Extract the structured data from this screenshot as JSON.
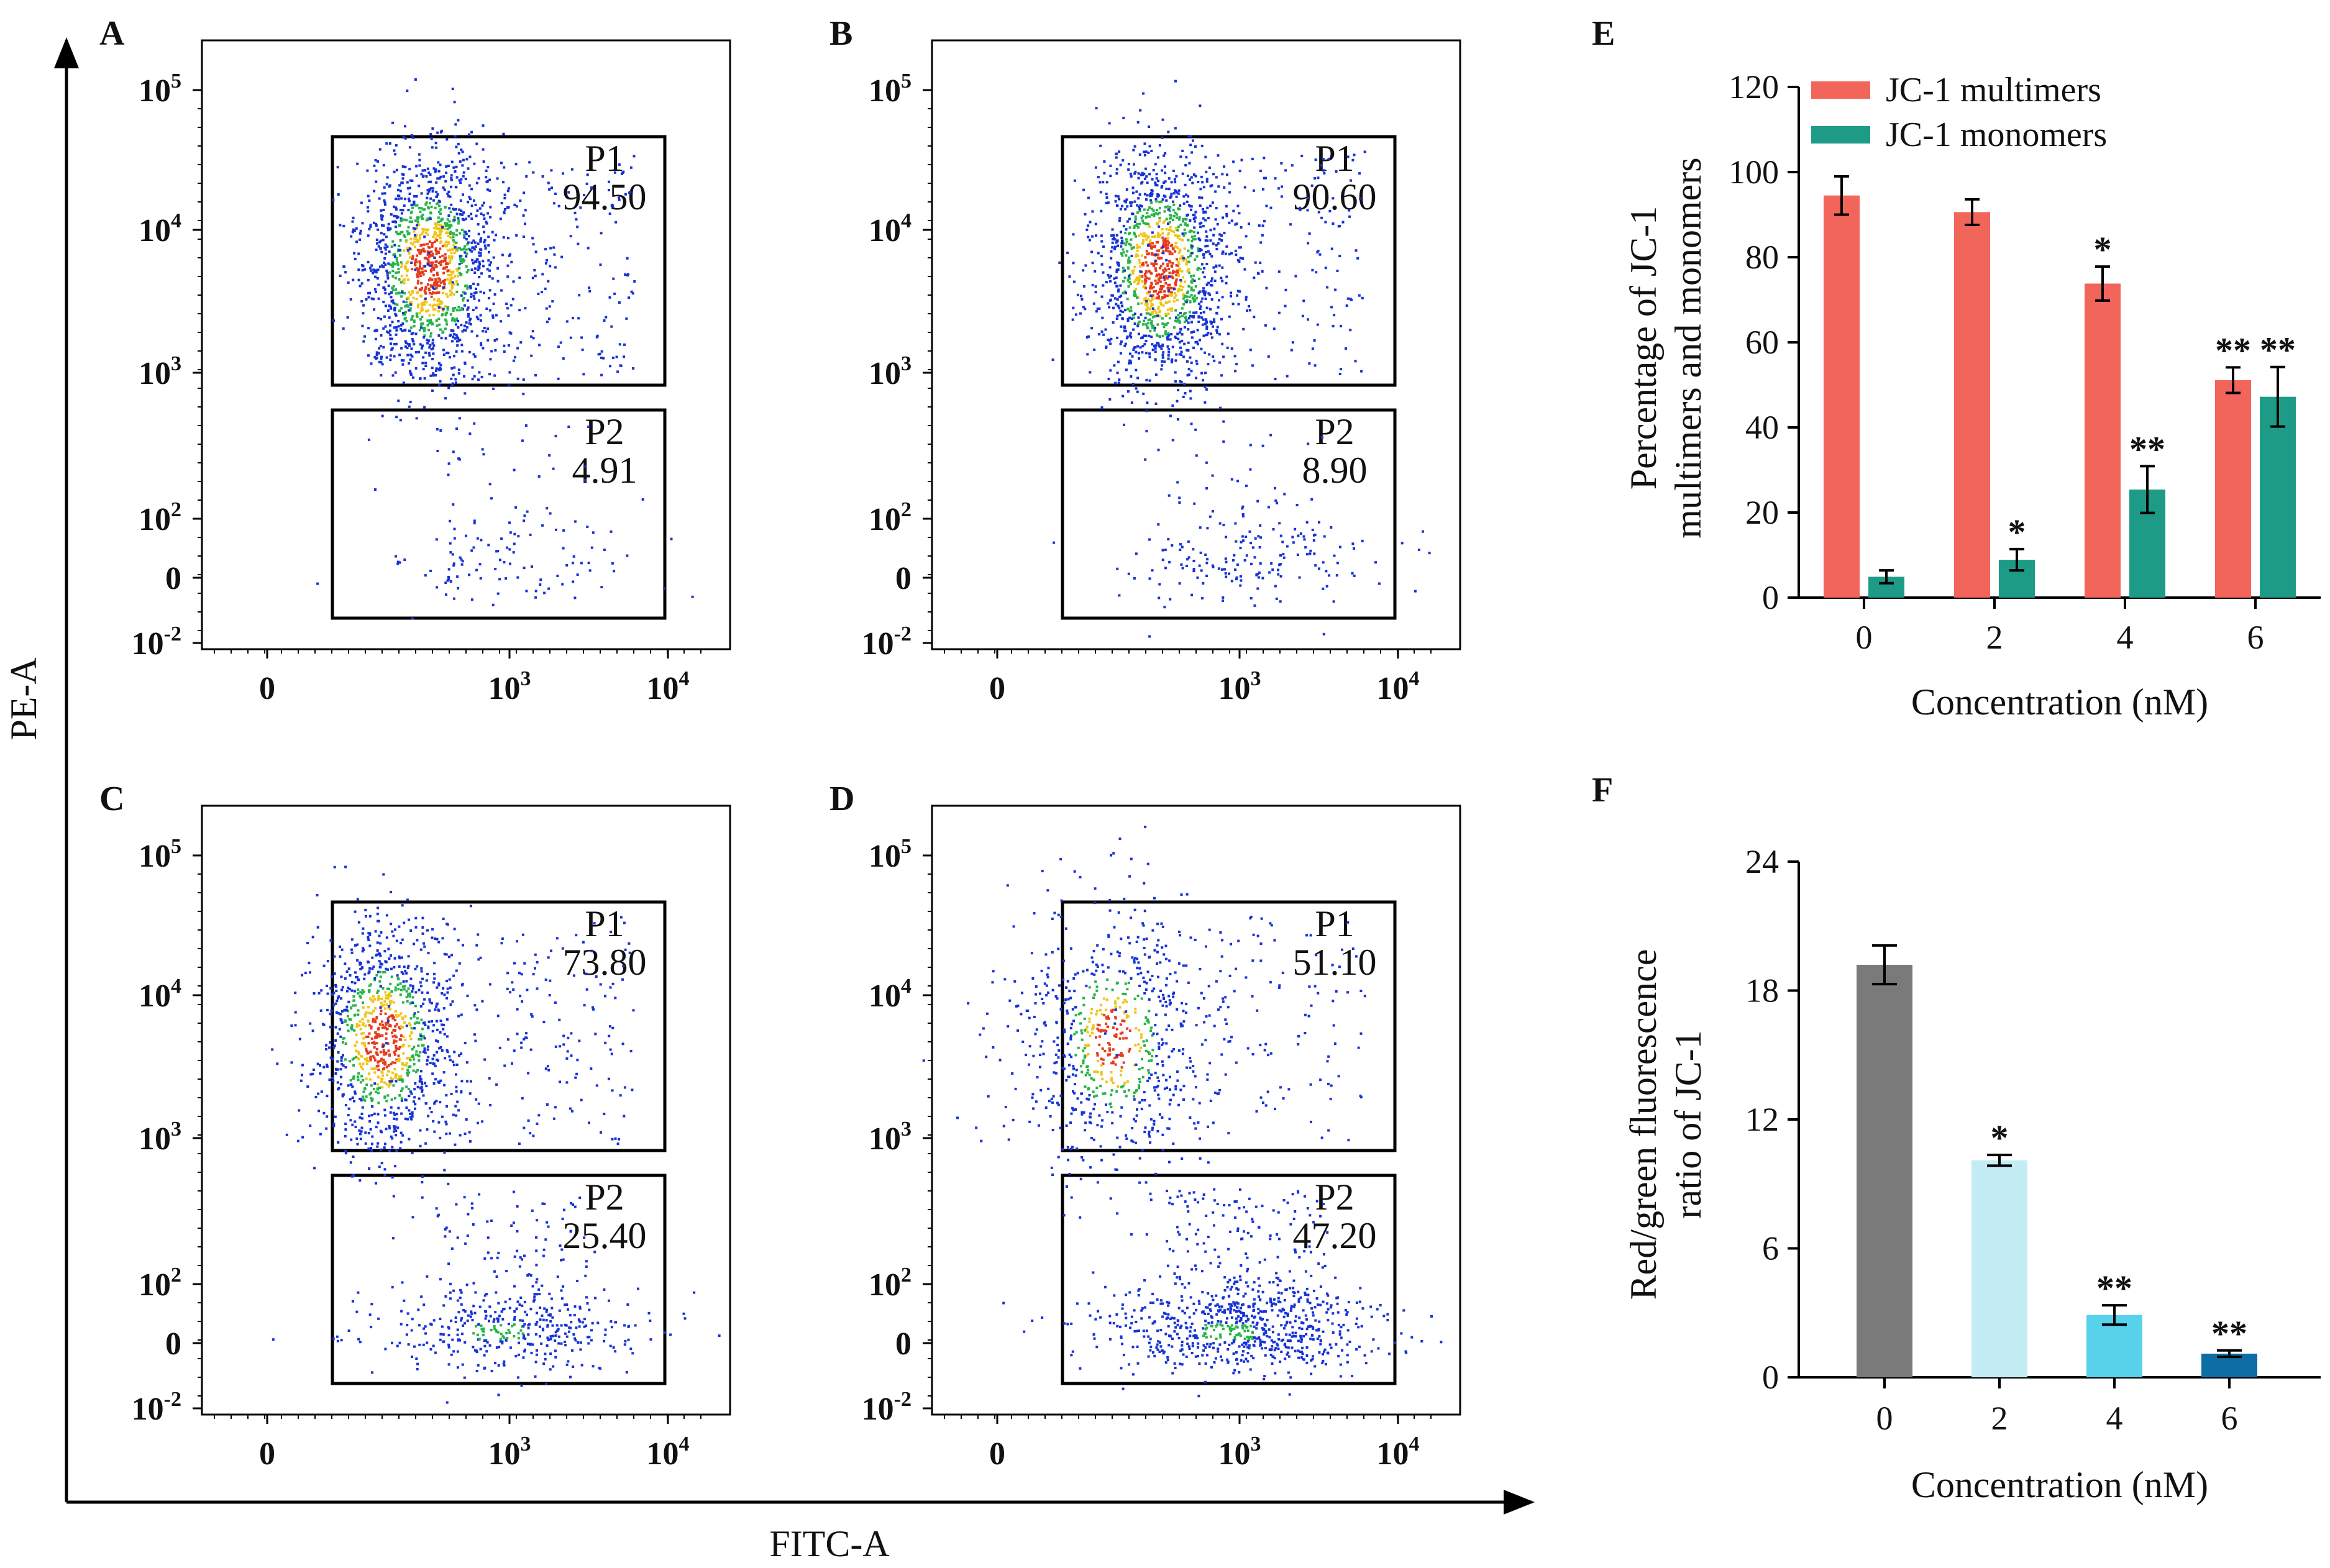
{
  "figure": {
    "global_axes": {
      "y_label": "PE-A",
      "x_label": "FITC-A"
    },
    "flow_panels": [
      {
        "letter": "A",
        "gates": [
          {
            "name": "P1",
            "value": "94.50"
          },
          {
            "name": "P2",
            "value": "4.91"
          }
        ],
        "seed": 11
      },
      {
        "letter": "B",
        "gates": [
          {
            "name": "P1",
            "value": "90.60"
          },
          {
            "name": "P2",
            "value": "8.90"
          }
        ],
        "seed": 23
      },
      {
        "letter": "C",
        "gates": [
          {
            "name": "P1",
            "value": "73.80"
          },
          {
            "name": "P2",
            "value": "25.40"
          }
        ],
        "seed": 37
      },
      {
        "letter": "D",
        "gates": [
          {
            "name": "P1",
            "value": "51.10"
          },
          {
            "name": "P2",
            "value": "47.20"
          }
        ],
        "seed": 53
      }
    ],
    "flow_ticks": {
      "y": [
        {
          "label": "10",
          "sup": "5"
        },
        {
          "label": "10",
          "sup": "4"
        },
        {
          "label": "10",
          "sup": "3"
        },
        {
          "label": "10",
          "sup": "2"
        },
        {
          "label": "0",
          "sup": ""
        },
        {
          "label": "10",
          "sup": "-2"
        }
      ],
      "x": [
        {
          "label": "0",
          "sup": ""
        },
        {
          "label": "10",
          "sup": "3"
        },
        {
          "label": "10",
          "sup": "4"
        }
      ]
    }
  },
  "chart_data": [
    {
      "panel": "E",
      "type": "bar",
      "categories": [
        "0",
        "2",
        "4",
        "6"
      ],
      "series": [
        {
          "name": "JC-1 multimers",
          "color": "#f2655a",
          "values": [
            94.5,
            90.6,
            73.8,
            51.1
          ],
          "errors": [
            4.5,
            3.0,
            4.0,
            3.0
          ],
          "significance": [
            "",
            "",
            "*",
            "**"
          ]
        },
        {
          "name": "JC-1 monomers",
          "color": "#1e9b87",
          "values": [
            4.9,
            8.9,
            25.4,
            47.2
          ],
          "errors": [
            1.5,
            2.5,
            5.5,
            7.0
          ],
          "significance": [
            "",
            "*",
            "**",
            "**"
          ]
        }
      ],
      "ylim": [
        0,
        120
      ],
      "yticks": [
        0,
        20,
        40,
        60,
        80,
        100,
        120
      ],
      "xlabel": "Concentration (nM)",
      "ylabel_lines": [
        "Percentage of JC-1",
        "multimers and monomers"
      ],
      "legend": "top-left"
    },
    {
      "panel": "F",
      "type": "bar",
      "categories": [
        "0",
        "2",
        "4",
        "6"
      ],
      "values": [
        19.2,
        10.1,
        2.9,
        1.1
      ],
      "errors": [
        0.9,
        0.25,
        0.45,
        0.15
      ],
      "colors": [
        "#7a7a7a",
        "#c4ecf5",
        "#57d2ea",
        "#0d6ea3"
      ],
      "significance": [
        "",
        "*",
        "**",
        "**"
      ],
      "ylim": [
        0,
        24
      ],
      "yticks": [
        0,
        6,
        12,
        18,
        24
      ],
      "xlabel": "Concentration (nM)",
      "ylabel_lines": [
        "Red/green fluorescence",
        "ratio of JC-1"
      ]
    }
  ]
}
